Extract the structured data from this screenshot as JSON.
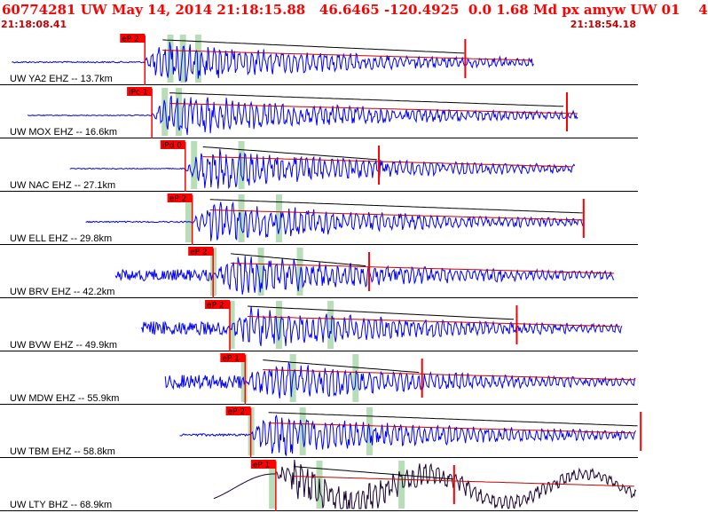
{
  "header": {
    "title": "60774281 UW May 14, 2014 21:18:15.88   46.6465 -120.4925  0.0 1.68 Md px amyw UW 01    4",
    "start_time": "21:18:08.41",
    "end_time": "21:18:54.18"
  },
  "colors": {
    "trace": "#0000ff",
    "trace_dark": "#1a0033",
    "pick": "#ff0000",
    "window": "#aad8aa",
    "coda_fit": "#000000",
    "coda_obs": "#cc0000",
    "title": "#ff0000"
  },
  "chart_data": {
    "type": "seismogram",
    "time_range": [
      "21:18:08.41",
      "21:18:54.18"
    ],
    "traces": [
      {
        "label": "UW YA2 EHZ -- 13.7km",
        "pick": "eP 2",
        "p_arrival_s": 10.4,
        "signal_end_s": 38.3,
        "duration_end_s": 33.4,
        "noise_amp": 0.03,
        "max_amp": 0.9,
        "window_s": [
          12.2,
          13.1,
          14.2
        ]
      },
      {
        "label": "UW MOX EHZ -- 16.6km",
        "pick": "iPc 1",
        "p_arrival_s": 10.9,
        "signal_end_s": 41.5,
        "duration_end_s": 40.7,
        "noise_amp": 0.02,
        "max_amp": 0.95,
        "window_s": [
          11.8,
          12.8
        ]
      },
      {
        "label": "UW NAC EHZ -- 27.1km",
        "pick": "iPd 0",
        "p_arrival_s": 13.3,
        "signal_end_s": 41.3,
        "duration_end_s": 27.2,
        "noise_amp": 0.02,
        "max_amp": 0.9,
        "window_s": [
          13.9,
          17.3
        ]
      },
      {
        "label": "UW ELL EHZ -- 29.8km",
        "pick": "eP 2",
        "p_arrival_s": 13.8,
        "signal_end_s": 41.9,
        "duration_end_s": 41.9,
        "noise_amp": 0.03,
        "max_amp": 0.9,
        "window_s": [
          13.5,
          17.3,
          20.0
        ]
      },
      {
        "label": "UW BRV EHZ -- 42.2km",
        "pick": "eP 2",
        "p_arrival_s": 15.3,
        "signal_end_s": 44.1,
        "duration_end_s": 26.5,
        "noise_amp": 0.25,
        "max_amp": 0.9,
        "window_s": [
          15.3,
          18.7,
          21.5
        ]
      },
      {
        "label": "UW BVW EHZ -- 49.9km",
        "pick": "eP 2",
        "p_arrival_s": 16.5,
        "signal_end_s": 44.7,
        "duration_end_s": 37.1,
        "noise_amp": 0.3,
        "max_amp": 0.9,
        "window_s": [
          16.6,
          20.0,
          23.7
        ]
      },
      {
        "label": "UW MDW EHZ -- 55.9km",
        "pick": "eP 1",
        "p_arrival_s": 17.6,
        "signal_end_s": 46.1,
        "duration_end_s": 30.3,
        "noise_amp": 0.3,
        "max_amp": 0.9,
        "window_s": [
          17.5,
          21.0,
          25.5
        ]
      },
      {
        "label": "UW TBM EHZ -- 58.8km",
        "pick": "eP 2",
        "p_arrival_s": 18.0,
        "signal_end_s": 46.0,
        "duration_end_s": 46.0,
        "noise_amp": 0.05,
        "max_amp": 0.95,
        "window_s": [
          18.0,
          21.7,
          26.5
        ]
      },
      {
        "label": "UW LTY BHZ -- 68.9km",
        "pick": "eP 1",
        "p_arrival_s": 19.8,
        "signal_end_s": 45.8,
        "duration_end_s": 32.6,
        "noise_amp": 0.1,
        "max_amp": 0.9,
        "window_s": [
          19.5,
          22.9,
          28.8
        ]
      }
    ]
  }
}
